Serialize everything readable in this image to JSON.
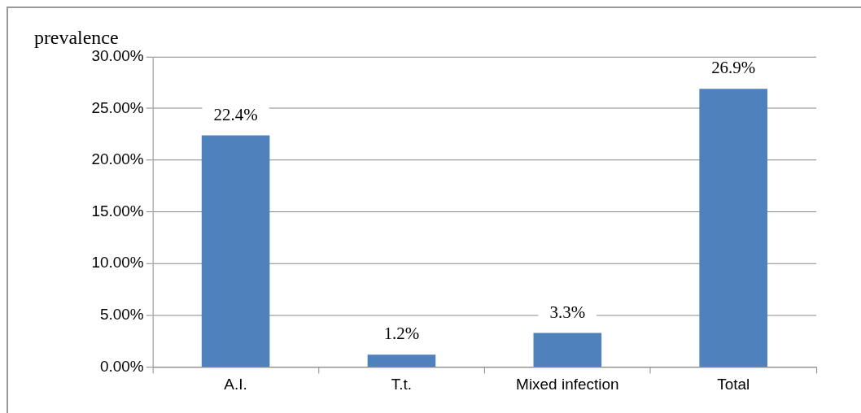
{
  "chart_data": {
    "type": "bar",
    "ylabel": "prevalence",
    "categories": [
      "A.I.",
      "T.t.",
      "Mixed infection",
      "Total"
    ],
    "values": [
      22.4,
      1.2,
      3.3,
      26.9
    ],
    "value_labels": [
      "22.4%",
      "1.2%",
      "3.3%",
      "26.9%"
    ],
    "color": "#4f81bd",
    "ylim": [
      0,
      30
    ],
    "yticks": [
      {
        "value": 0,
        "label": "0.00%"
      },
      {
        "value": 5,
        "label": "5.00%"
      },
      {
        "value": 10,
        "label": "10.00%"
      },
      {
        "value": 15,
        "label": "15.00%"
      },
      {
        "value": 20,
        "label": "20.00%"
      },
      {
        "value": 25,
        "label": "25.00%"
      },
      {
        "value": 30,
        "label": "30.00%"
      }
    ],
    "grid": "y",
    "legend": false
  }
}
